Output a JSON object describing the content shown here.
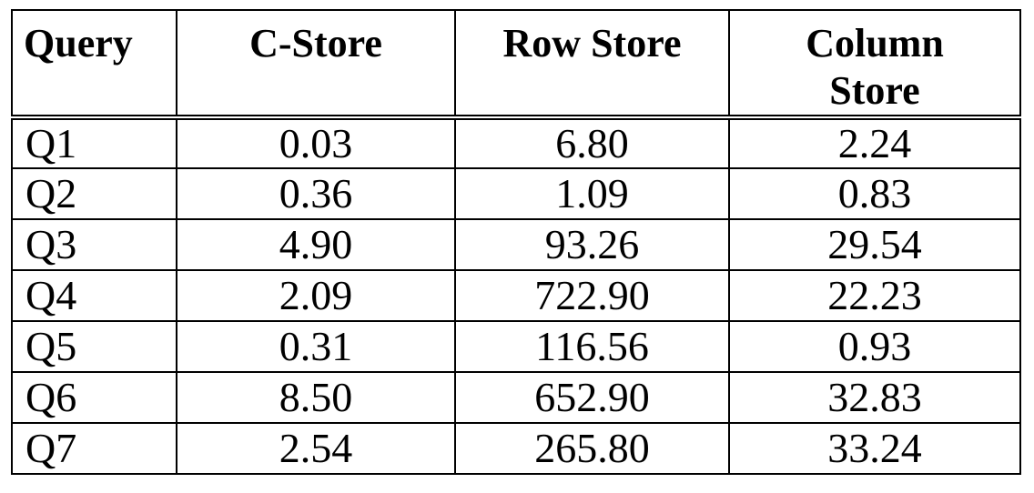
{
  "table": {
    "columns": [
      "Query",
      "C-Store",
      "Row Store",
      "Column Store"
    ],
    "column_lines": [
      [
        "Query"
      ],
      [
        "C-Store"
      ],
      [
        "Row Store"
      ],
      [
        "Column",
        "Store"
      ]
    ],
    "rows": [
      [
        "Q1",
        "0.03",
        "6.80",
        "2.24"
      ],
      [
        "Q2",
        "0.36",
        "1.09",
        "0.83"
      ],
      [
        "Q3",
        "4.90",
        "93.26",
        "29.54"
      ],
      [
        "Q4",
        "2.09",
        "722.90",
        "22.23"
      ],
      [
        "Q5",
        "0.31",
        "116.56",
        "0.93"
      ],
      [
        "Q6",
        "8.50",
        "652.90",
        "32.83"
      ],
      [
        "Q7",
        "2.54",
        "265.80",
        "33.24"
      ]
    ]
  },
  "chart_data": {
    "type": "table",
    "columns": [
      "Query",
      "C-Store",
      "Row Store",
      "Column Store"
    ],
    "rows": [
      [
        "Q1",
        0.03,
        6.8,
        2.24
      ],
      [
        "Q2",
        0.36,
        1.09,
        0.83
      ],
      [
        "Q3",
        4.9,
        93.26,
        29.54
      ],
      [
        "Q4",
        2.09,
        722.9,
        22.23
      ],
      [
        "Q5",
        0.31,
        116.56,
        0.93
      ],
      [
        "Q6",
        8.5,
        652.9,
        32.83
      ],
      [
        "Q7",
        2.54,
        265.8,
        33.24
      ]
    ]
  }
}
